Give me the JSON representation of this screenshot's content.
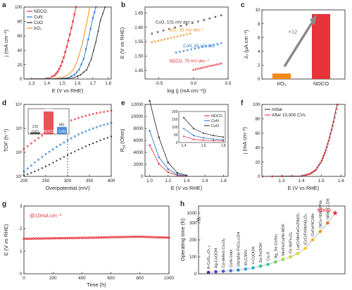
{
  "colors": {
    "ndco": "#e8333a",
    "con": "#2a7bd4",
    "coo": "#333333",
    "iro2": "#f28a1c",
    "purple": "#7b3fc4"
  },
  "chart_data": [
    {
      "id": "a",
      "type": "line",
      "panel_label": "a",
      "xlabel": "E (V vs RHE)",
      "ylabel": "j (mA cm⁻²)",
      "xlim": [
        1.25,
        1.82
      ],
      "ylim": [
        0,
        100
      ],
      "xticks": [
        1.3,
        1.4,
        1.5,
        1.6,
        1.7,
        1.8
      ],
      "yticks": [
        0,
        20,
        40,
        60,
        80,
        100
      ],
      "legend": {
        "position": "top-left",
        "entries": [
          "NDCO",
          "CoN",
          "CoO",
          "IrO₂"
        ]
      },
      "series": [
        {
          "name": "NDCO",
          "color": "#e8333a",
          "x": [
            1.25,
            1.38,
            1.42,
            1.45,
            1.47,
            1.49,
            1.51,
            1.53,
            1.55,
            1.57,
            1.59
          ],
          "y": [
            0,
            0.5,
            2,
            5,
            10,
            18,
            30,
            45,
            62,
            80,
            100
          ]
        },
        {
          "name": "IrO₂",
          "color": "#f28a1c",
          "x": [
            1.25,
            1.44,
            1.5,
            1.54,
            1.57,
            1.6,
            1.63,
            1.66,
            1.68
          ],
          "y": [
            0,
            0.5,
            2,
            6,
            12,
            26,
            48,
            78,
            100
          ]
        },
        {
          "name": "CoN",
          "color": "#2a7bd4",
          "x": [
            1.25,
            1.48,
            1.54,
            1.58,
            1.61,
            1.64,
            1.67,
            1.7,
            1.72
          ],
          "y": [
            0,
            0.5,
            2,
            6,
            13,
            28,
            55,
            85,
            100
          ]
        },
        {
          "name": "CoO",
          "color": "#333333",
          "x": [
            1.25,
            1.52,
            1.58,
            1.62,
            1.66,
            1.69,
            1.72,
            1.75,
            1.78
          ],
          "y": [
            0,
            0.5,
            2,
            6,
            13,
            28,
            52,
            82,
            100
          ]
        }
      ]
    },
    {
      "id": "b",
      "type": "line",
      "panel_label": "b",
      "xlabel": "log (j (mA cm⁻²))",
      "ylabel": "E (V vs RHE)",
      "xlim": [
        -0.7,
        0.5
      ],
      "ylim": [
        1.42,
        1.67
      ],
      "xticks": [
        -0.5,
        0.0,
        0.5
      ],
      "yticks": [
        1.45,
        1.5,
        1.55,
        1.6,
        1.65
      ],
      "annotations": [
        "CoO, 101 mV dec⁻¹",
        "IrO₂, 93 mV dec⁻¹",
        "CoN, 85 mV dec⁻¹",
        "NDCO, 75 mV dec⁻¹"
      ],
      "series": [
        {
          "name": "CoO",
          "color": "#333333",
          "x": [
            -0.6,
            0.4
          ],
          "y": [
            1.578,
            1.641
          ]
        },
        {
          "name": "IrO₂",
          "color": "#f28a1c",
          "x": [
            -0.6,
            -0.05
          ],
          "y": [
            1.548,
            1.578
          ]
        },
        {
          "name": "CoN",
          "color": "#2a7bd4",
          "x": [
            -0.25,
            0.4
          ],
          "y": [
            1.512,
            1.545
          ]
        },
        {
          "name": "NDCO",
          "color": "#e8333a",
          "x": [
            0.0,
            0.4
          ],
          "y": [
            1.452,
            1.474
          ]
        }
      ]
    },
    {
      "id": "c",
      "type": "bar",
      "panel_label": "c",
      "categories": [
        "IrO₂",
        "NDCO"
      ],
      "values": [
        0.8,
        9.4
      ],
      "ylabel": "J₀ (μA cm⁻²)",
      "ylim": [
        0,
        10
      ],
      "yticks": [
        0,
        2,
        4,
        6,
        8,
        10
      ],
      "annotation": "×12"
    },
    {
      "id": "d",
      "type": "scatter",
      "panel_label": "d",
      "xlabel": "Overpotential (mV)",
      "ylabel": "TOF (h⁻¹)",
      "xlim": [
        200,
        400
      ],
      "yscale": "log",
      "ylim_exp": [
        1,
        4
      ],
      "xticks": [
        200,
        250,
        300,
        350,
        400
      ],
      "yticks": [
        "10¹",
        "10²",
        "10³",
        "10⁴"
      ],
      "vline": 300,
      "inset": {
        "categories": [
          "CoO",
          "NDCO",
          "CoN"
        ],
        "values": [
          215,
          2820,
          881
        ],
        "labels": [
          "215",
          "2820",
          "881"
        ]
      },
      "series": [
        {
          "name": "NDCO",
          "color": "#e8333a",
          "x": [
            200,
            225,
            250,
            275,
            300,
            325,
            350,
            375,
            400
          ],
          "y": [
            140,
            310,
            630,
            1150,
            1900,
            2750,
            3700,
            4650,
            5500
          ]
        },
        {
          "name": "CoN",
          "color": "#2a7bd4",
          "x": [
            200,
            225,
            250,
            275,
            300,
            325,
            350,
            375,
            400
          ],
          "y": [
            16,
            38,
            85,
            170,
            320,
            560,
            880,
            1270,
            1700
          ]
        },
        {
          "name": "CoO",
          "color": "#333333",
          "x": [
            200,
            225,
            250,
            275,
            300,
            325,
            350,
            375,
            400
          ],
          "y": [
            11,
            16,
            26,
            45,
            78,
            130,
            210,
            320,
            460
          ]
        }
      ]
    },
    {
      "id": "e",
      "type": "line",
      "panel_label": "e",
      "xlabel": "E (V vs RHE)",
      "ylabel": "Rct (Ohm)",
      "xlim": [
        0.95,
        1.85
      ],
      "ylim": [
        0,
        12000
      ],
      "xticks": [
        1.0,
        1.2,
        1.4,
        1.6,
        1.8
      ],
      "yticks": [
        0,
        2000,
        4000,
        6000,
        8000,
        10000,
        12000
      ],
      "legend": {
        "position": "top-right",
        "entries": [
          "NDCO",
          "CoN",
          "CoO"
        ]
      },
      "inset": {
        "xlim": [
          1.35,
          1.82
        ],
        "ylim": [
          0,
          200
        ],
        "xticks": [
          1.4,
          1.6,
          1.8
        ],
        "yticks": [
          0,
          50,
          100,
          150,
          200
        ]
      },
      "series": [
        {
          "name": "NDCO",
          "color": "#e8333a",
          "x": [
            1.0,
            1.1,
            1.2,
            1.3,
            1.4,
            1.5,
            1.6,
            1.7,
            1.8
          ],
          "y": [
            5200,
            2100,
            700,
            150,
            40,
            20,
            15,
            12,
            10
          ]
        },
        {
          "name": "CoN",
          "color": "#2a7bd4",
          "x": [
            1.0,
            1.1,
            1.2,
            1.3,
            1.4,
            1.5,
            1.6,
            1.7,
            1.8
          ],
          "y": [
            7600,
            3200,
            1200,
            300,
            90,
            45,
            30,
            22,
            18
          ]
        },
        {
          "name": "CoO",
          "color": "#333333",
          "x": [
            1.0,
            1.1,
            1.2,
            1.3,
            1.4,
            1.5,
            1.6,
            1.7,
            1.8
          ],
          "y": [
            12600,
            6500,
            2300,
            600,
            160,
            90,
            60,
            45,
            35
          ]
        }
      ]
    },
    {
      "id": "f",
      "type": "line",
      "panel_label": "f",
      "xlabel": "E (V vs RHE)",
      "ylabel": "j (mA cm⁻²)",
      "xlim": [
        1.2,
        1.62
      ],
      "ylim": [
        0,
        100
      ],
      "xticks": [
        1.3,
        1.4,
        1.5,
        1.6
      ],
      "yticks": [
        0,
        20,
        40,
        60,
        80,
        100
      ],
      "legend": {
        "position": "top-left",
        "entries": [
          "Initial",
          "After 10,000 CVs"
        ]
      },
      "series": [
        {
          "name": "Initial",
          "color": "#333333",
          "x": [
            1.2,
            1.4,
            1.44,
            1.47,
            1.5,
            1.52,
            1.54,
            1.56,
            1.58
          ],
          "y": [
            0,
            0.5,
            3,
            8,
            20,
            34,
            52,
            74,
            100
          ]
        },
        {
          "name": "After 10,000 CVs",
          "color": "#e8333a",
          "x": [
            1.2,
            1.4,
            1.44,
            1.47,
            1.5,
            1.52,
            1.54,
            1.56,
            1.58
          ],
          "y": [
            0,
            0.6,
            3.5,
            9,
            22,
            36,
            54,
            76,
            100
          ]
        }
      ]
    },
    {
      "id": "g",
      "type": "line",
      "panel_label": "g",
      "xlabel": "Time (h)",
      "ylabel": "E (V vs RHE)",
      "xlim": [
        0,
        1000
      ],
      "ylim": [
        0,
        3
      ],
      "xticks": [
        0,
        200,
        400,
        600,
        800,
        1000
      ],
      "yticks": [
        0,
        1,
        2,
        3
      ],
      "annotation": "@10mA cm⁻²",
      "series": [
        {
          "name": "NDCO",
          "color": "#e8333a",
          "x": [
            0,
            100,
            200,
            300,
            400,
            500,
            600,
            700,
            800,
            900,
            1000
          ],
          "y": [
            1.55,
            1.56,
            1.57,
            1.58,
            1.59,
            1.6,
            1.62,
            1.63,
            1.64,
            1.62,
            1.6
          ]
        }
      ]
    },
    {
      "id": "h",
      "type": "scatter",
      "panel_label": "h",
      "ylabel": "Operating time (h)",
      "ylim": [
        0,
        1000
      ],
      "yticks": [
        0,
        100,
        200,
        300,
        1000
      ],
      "categories": [
        "A-CoS₄.₆O₀.₆",
        "Ag-CoOOH",
        "Co-defect Co₃O₄",
        "CoN-1min",
        "Ultrathin FeCo-LDH",
        "W₂C/WN",
        "V-CoOOH",
        "Se-FeOOH",
        "Cu₂S",
        "Ag_Se-CoSe₂",
        "Mn/Fe/Co/Ni-MOF",
        "Fe-Ni/Fe₃O₄",
        "La(CrMnFeCo2Ni)O₃",
        "(CrCrFeMnNi)₃O₄",
        "CoFe/NC/Mn",
        "NiCo-NMOF/Ns",
        "NiMoV-LDH",
        "NDCO"
      ],
      "values": [
        8,
        12,
        15,
        18,
        22,
        28,
        35,
        45,
        55,
        70,
        85,
        100,
        120,
        150,
        200,
        250,
        300,
        1000
      ],
      "colors": [
        "#4b2c9f",
        "#4a3fc0",
        "#4457d4",
        "#3a73db",
        "#2f8ede",
        "#22a6d6",
        "#1db8c2",
        "#22c6a4",
        "#3fcf84",
        "#66d65e",
        "#8fdb3c",
        "#b3dd2a",
        "#d4dc24",
        "#ecd022",
        "#f4b523",
        "#f59224",
        "#f06a22",
        "#e8333a"
      ],
      "annotation": "NDCO"
    }
  ]
}
